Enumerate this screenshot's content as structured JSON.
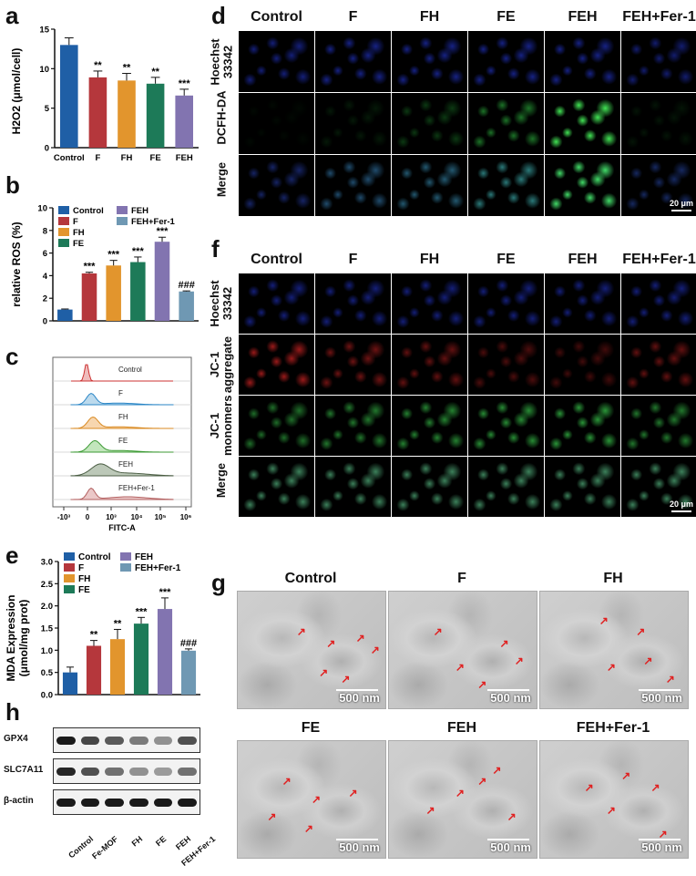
{
  "panel_letters": {
    "a": "a",
    "b": "b",
    "c": "c",
    "d": "d",
    "e": "e",
    "f": "f",
    "g": "g",
    "h": "h"
  },
  "colors": {
    "Control": "#1f5fa6",
    "F": "#b5373c",
    "FH": "#e2952d",
    "FE": "#1d7a58",
    "FEH": "#8274b0",
    "FEH+Fer-1": "#6f98b3"
  },
  "chart_data": [
    {
      "panel": "a",
      "type": "bar",
      "categories": [
        "Control",
        "F",
        "FH",
        "FE",
        "FEH"
      ],
      "values": [
        13.0,
        8.9,
        8.5,
        8.1,
        6.6
      ],
      "errors": [
        0.9,
        0.8,
        0.9,
        0.8,
        0.8
      ],
      "annotations": [
        "",
        "**",
        "**",
        "**",
        "***"
      ],
      "ylabel": "H2O2 (μmol/cell)",
      "ylim": [
        0,
        15
      ],
      "yticks": [
        0,
        5,
        10,
        15
      ]
    },
    {
      "panel": "b",
      "type": "bar",
      "categories": [
        "Control",
        "F",
        "FH",
        "FE",
        "FEH",
        "FEH+Fer-1"
      ],
      "values": [
        1.0,
        4.2,
        4.9,
        5.2,
        7.0,
        2.6
      ],
      "errors": [
        0.05,
        0.1,
        0.45,
        0.45,
        0.4,
        0.05
      ],
      "annotations": [
        "",
        "***",
        "***",
        "***",
        "***",
        "###"
      ],
      "ylabel": "relative ROS (%)",
      "ylim": [
        0,
        10
      ],
      "yticks": [
        0,
        2,
        4,
        6,
        8,
        10
      ],
      "legend": [
        "Control",
        "F",
        "FH",
        "FE",
        "FEH",
        "FEH+Fer-1"
      ]
    },
    {
      "panel": "c",
      "type": "area",
      "series": [
        "Control",
        "F",
        "FH",
        "FE",
        "FEH",
        "FEH+Fer-1"
      ],
      "xlabel": "FITC-A",
      "xticks": [
        "-10³",
        "0",
        "10³",
        "10⁴",
        "10⁵",
        "10⁶"
      ]
    },
    {
      "panel": "e",
      "type": "bar",
      "categories": [
        "Control",
        "F",
        "FH",
        "FE",
        "FEH",
        "FEH+Fer-1"
      ],
      "values": [
        0.5,
        1.1,
        1.25,
        1.6,
        1.93,
        0.99
      ],
      "errors": [
        0.12,
        0.12,
        0.22,
        0.14,
        0.25,
        0.04
      ],
      "annotations": [
        "",
        "**",
        "**",
        "***",
        "***",
        "###"
      ],
      "ylabel": "MDA Expression (μmol/mg prot)",
      "ylim": [
        0,
        3.0
      ],
      "yticks": [
        "0.0",
        "0.5",
        "1.0",
        "1.5",
        "2.0",
        "2.5",
        "3.0"
      ],
      "legend": [
        "Control",
        "F",
        "FH",
        "FE",
        "FEH",
        "FEH+Fer-1"
      ]
    }
  ],
  "panel_d": {
    "columns": [
      "Control",
      "F",
      "FH",
      "FE",
      "FEH",
      "FEH+Fer-1"
    ],
    "rows": [
      "Hoechst 33342",
      "DCFH-DA",
      "Merge"
    ],
    "scale": "20 μm"
  },
  "panel_f": {
    "columns": [
      "Control",
      "F",
      "FH",
      "FE",
      "FEH",
      "FEH+Fer-1"
    ],
    "rows": [
      "Hoechst 33342",
      "JC-1 aggregate",
      "JC-1 monomers",
      "Merge"
    ],
    "scale": "20 μm"
  },
  "panel_g": {
    "titles": [
      "Control",
      "F",
      "FH",
      "FE",
      "FEH",
      "FEH+Fer-1"
    ],
    "scale": "500 nm"
  },
  "panel_h": {
    "proteins": [
      "GPX4",
      "SLC7A11",
      "β-actin"
    ],
    "lanes": [
      "Control",
      "Fe-MOF",
      "FH",
      "FE",
      "FEH",
      "FEH+Fer-1"
    ]
  }
}
